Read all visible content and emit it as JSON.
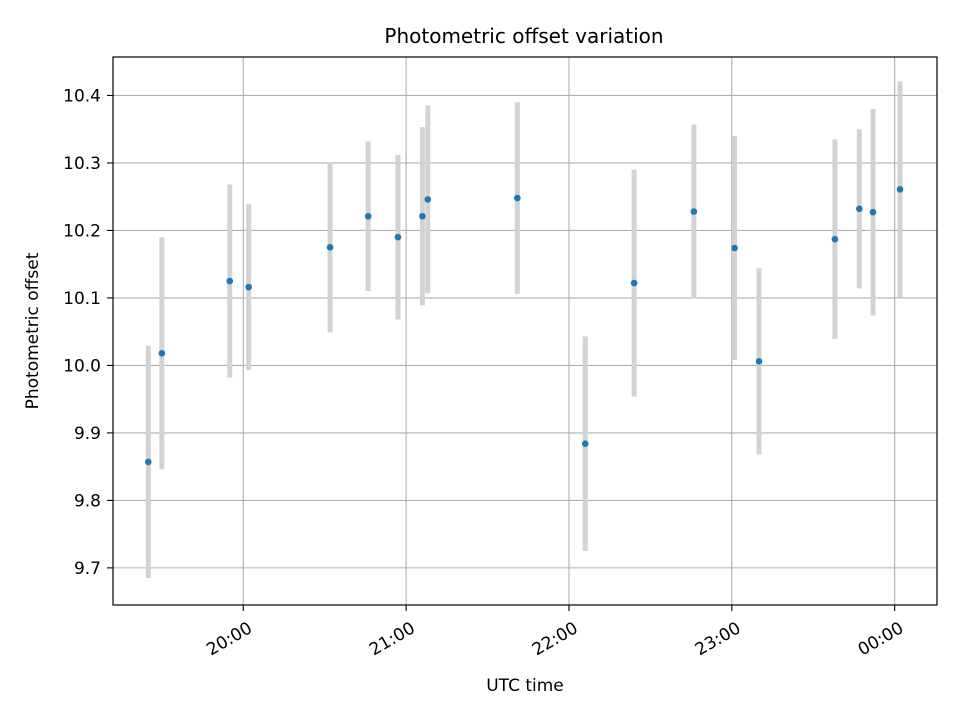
{
  "chart_data": {
    "type": "scatter",
    "title": "Photometric offset variation",
    "xlabel": "UTC time",
    "ylabel": "Photometric offset",
    "grid": true,
    "xlim": [
      19.2,
      24.26
    ],
    "ylim": [
      9.645,
      10.457
    ],
    "x_ticks": [
      {
        "value": 20.0,
        "label": "20:00"
      },
      {
        "value": 21.0,
        "label": "21:00"
      },
      {
        "value": 22.0,
        "label": "22:00"
      },
      {
        "value": 23.0,
        "label": "23:00"
      },
      {
        "value": 24.0,
        "label": "00:00"
      }
    ],
    "y_ticks": [
      {
        "value": 9.7,
        "label": "9.7"
      },
      {
        "value": 9.8,
        "label": "9.8"
      },
      {
        "value": 9.9,
        "label": "9.9"
      },
      {
        "value": 10.0,
        "label": "10.0"
      },
      {
        "value": 10.1,
        "label": "10.1"
      },
      {
        "value": 10.2,
        "label": "10.2"
      },
      {
        "value": 10.3,
        "label": "10.3"
      },
      {
        "value": 10.4,
        "label": "10.4"
      }
    ],
    "series": [
      {
        "name": "offset",
        "marker_color": "#1f77b4",
        "errorbar_color": "#d3d3d3",
        "points": [
          {
            "x": 19.417,
            "y": 9.857,
            "err": 0.172
          },
          {
            "x": 19.5,
            "y": 10.018,
            "err": 0.172
          },
          {
            "x": 19.917,
            "y": 10.125,
            "err": 0.143
          },
          {
            "x": 20.033,
            "y": 10.116,
            "err": 0.123
          },
          {
            "x": 20.533,
            "y": 10.175,
            "err": 0.126
          },
          {
            "x": 20.767,
            "y": 10.221,
            "err": 0.111
          },
          {
            "x": 20.95,
            "y": 10.19,
            "err": 0.122
          },
          {
            "x": 21.1,
            "y": 10.221,
            "err": 0.132
          },
          {
            "x": 21.133,
            "y": 10.246,
            "err": 0.139
          },
          {
            "x": 21.683,
            "y": 10.248,
            "err": 0.142
          },
          {
            "x": 22.1,
            "y": 9.884,
            "err": 0.159
          },
          {
            "x": 22.4,
            "y": 10.122,
            "err": 0.168
          },
          {
            "x": 22.767,
            "y": 10.228,
            "err": 0.129
          },
          {
            "x": 23.017,
            "y": 10.174,
            "err": 0.166
          },
          {
            "x": 23.167,
            "y": 10.006,
            "err": 0.138
          },
          {
            "x": 23.633,
            "y": 10.187,
            "err": 0.148
          },
          {
            "x": 23.783,
            "y": 10.232,
            "err": 0.118
          },
          {
            "x": 23.867,
            "y": 10.227,
            "err": 0.153
          },
          {
            "x": 24.033,
            "y": 10.261,
            "err": 0.16
          }
        ]
      }
    ]
  }
}
